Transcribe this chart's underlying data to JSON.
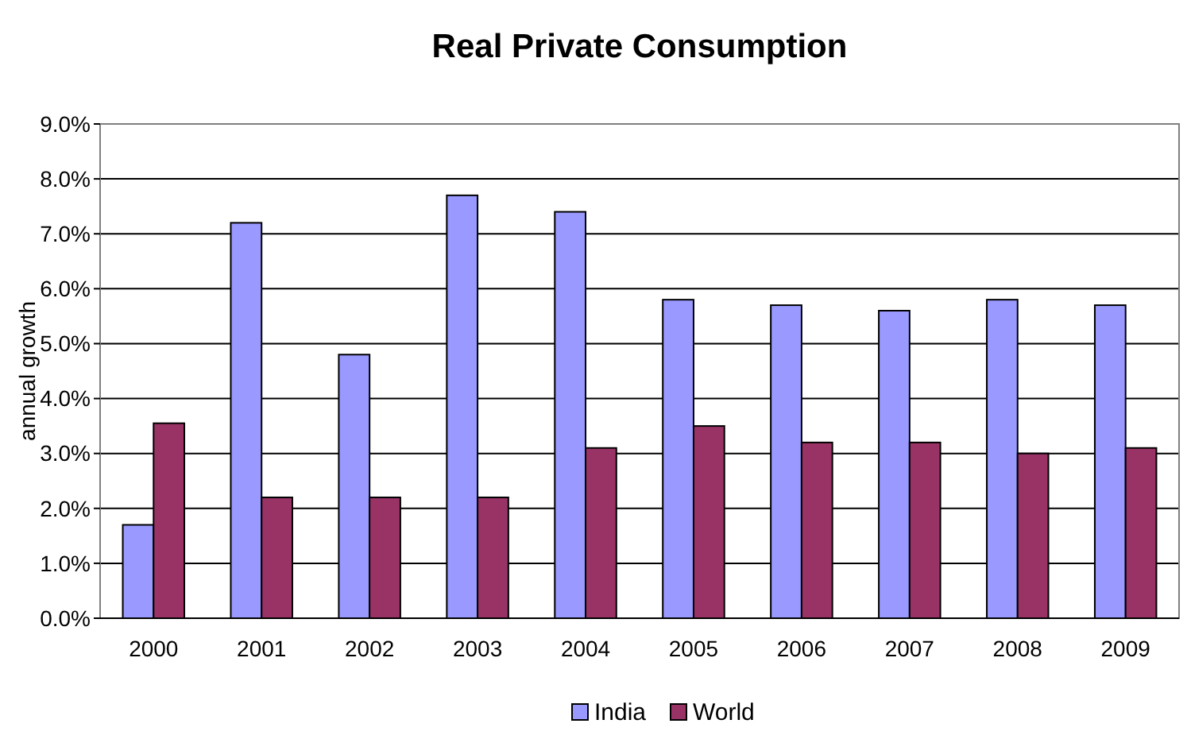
{
  "chart_data": {
    "type": "bar",
    "title": "Real Private Consumption",
    "ylabel": "annual growth",
    "categories": [
      "2000",
      "2001",
      "2002",
      "2003",
      "2004",
      "2005",
      "2006",
      "2007",
      "2008",
      "2009"
    ],
    "series": [
      {
        "name": "India",
        "color": "#9999ff",
        "values": [
          1.7,
          7.2,
          4.8,
          7.7,
          7.4,
          5.8,
          5.7,
          5.6,
          5.8,
          5.7
        ]
      },
      {
        "name": "World",
        "color": "#993366",
        "values": [
          3.55,
          2.2,
          2.2,
          2.2,
          3.1,
          3.5,
          3.2,
          3.2,
          3.0,
          3.1
        ]
      }
    ],
    "ylim": [
      0,
      9
    ],
    "yticks": [
      {
        "value": 0,
        "label": "0.0%"
      },
      {
        "value": 1,
        "label": "1.0%"
      },
      {
        "value": 2,
        "label": "2.0%"
      },
      {
        "value": 3,
        "label": "3.0%"
      },
      {
        "value": 4,
        "label": "4.0%"
      },
      {
        "value": 5,
        "label": "5.0%"
      },
      {
        "value": 6,
        "label": "6.0%"
      },
      {
        "value": 7,
        "label": "7.0%"
      },
      {
        "value": 8,
        "label": "8.0%"
      },
      {
        "value": 9,
        "label": "9.0%"
      }
    ],
    "grid": "y",
    "legend": "bottom"
  }
}
